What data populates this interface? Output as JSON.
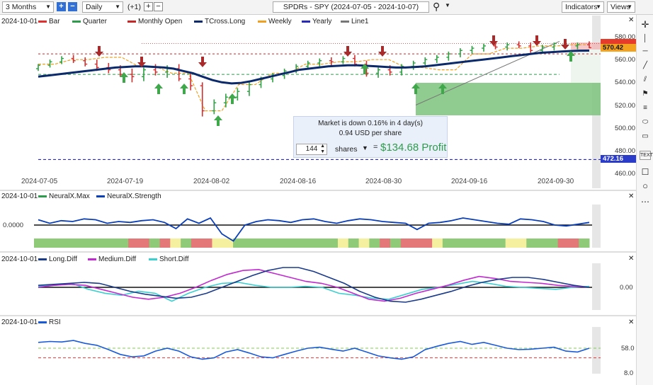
{
  "toolbar": {
    "range": "3 Months",
    "interval": "Daily",
    "plus_one": "(+1)",
    "title": "SPDRs - SPY (2024-07-05 - 2024-10-07)",
    "indicators": "Indicators",
    "views": "Views"
  },
  "price_panel": {
    "date": "2024-10-01",
    "legend": [
      {
        "label": "Bar",
        "color": "#e03030"
      },
      {
        "label": "Quarter",
        "color": "#2e9b4d"
      },
      {
        "label": "Monthly Open",
        "color": "#c62828"
      },
      {
        "label": "TCross.Long",
        "color": "#0b2a6b"
      },
      {
        "label": "Weekly",
        "color": "#f0a020"
      },
      {
        "label": "Yearly",
        "color": "#2a2ab8"
      },
      {
        "label": "Line1",
        "color": "#777777"
      }
    ],
    "y_ticks": [
      "580.00",
      "560.00",
      "540.00",
      "520.00",
      "500.00",
      "480.00",
      "460.00"
    ],
    "price_label": "570.42",
    "yearly_label": "472.16",
    "x_ticks": [
      "2024-07-05",
      "2024-07-19",
      "2024-08-02",
      "2024-08-16",
      "2024-08-30",
      "2024-09-16",
      "2024-09-30"
    ]
  },
  "callout": {
    "line1": "Market is down 0.16% in 4 day(s)",
    "line2": "0.94 USD per share",
    "quantity": "144",
    "shares": "shares",
    "equals": "=",
    "profit": "$134.68 Profit"
  },
  "neural_panel": {
    "date": "2024-10-01",
    "legend": [
      {
        "label": "NeuralX.Max",
        "color": "#2e9b4d"
      },
      {
        "label": "NeuralX.Strength",
        "color": "#0b3fb8"
      }
    ],
    "y_label": "0.0000"
  },
  "diff_panel": {
    "date": "2024-10-01",
    "legend": [
      {
        "label": "Long.Diff",
        "color": "#1a3a8a"
      },
      {
        "label": "Medium.Diff",
        "color": "#c02ad0"
      },
      {
        "label": "Short.Diff",
        "color": "#3ccfd0"
      }
    ],
    "y_label": "0.00"
  },
  "rsi_panel": {
    "date": "2024-10-01",
    "legend": [
      {
        "label": "RSI",
        "color": "#1a5ad8"
      }
    ],
    "y_ticks": [
      "58.0",
      "8.0"
    ]
  },
  "right_toolbar": {
    "icons": [
      "crosshair-icon",
      "vertical-line-icon",
      "horizontal-line-icon",
      "trend-line-icon",
      "channel-icon",
      "flag-icon",
      "fibonacci-icon",
      "ellipse-icon",
      "rectangle-icon",
      "text-icon",
      "square-icon",
      "circle-icon",
      "more-icon"
    ],
    "text_label": "TEXT"
  },
  "chart_data": {
    "type": "bar",
    "symbol": "SPY",
    "date_range": [
      "2024-07-05",
      "2024-10-07"
    ],
    "price_ylim": [
      460,
      585
    ],
    "last_price": 570.42,
    "yearly_level": 472.16,
    "quarter_level": 547.0,
    "monthly_open_level": 565.0,
    "tcross_long": [
      545,
      546,
      547,
      548,
      549,
      550,
      551,
      552,
      553,
      553.5,
      554,
      554,
      553.5,
      553,
      552,
      550,
      548,
      545,
      542,
      540,
      539,
      539.5,
      541,
      543,
      545,
      547,
      549,
      551,
      552,
      553,
      554,
      554.5,
      555,
      555,
      554.5,
      554,
      553.5,
      553,
      553,
      553.5,
      554,
      555,
      556,
      557,
      558,
      559,
      560,
      561,
      562,
      563,
      564,
      565,
      566,
      566.5,
      567,
      567.5,
      567.8,
      567.9
    ],
    "bars": [
      [
        552,
        556,
        550,
        555
      ],
      [
        555,
        560,
        553,
        558
      ],
      [
        558,
        563,
        556,
        561
      ],
      [
        561,
        564,
        557,
        559
      ],
      [
        559,
        562,
        554,
        556
      ],
      [
        556,
        560,
        550,
        553
      ],
      [
        553,
        557,
        548,
        551
      ],
      [
        551,
        555,
        545,
        547
      ],
      [
        547,
        552,
        540,
        545
      ],
      [
        545,
        553,
        541,
        551
      ],
      [
        551,
        556,
        546,
        549
      ],
      [
        549,
        555,
        544,
        552
      ],
      [
        552,
        556,
        541,
        543
      ],
      [
        543,
        548,
        533,
        537
      ],
      [
        537,
        540,
        510,
        515
      ],
      [
        515,
        525,
        512,
        522
      ],
      [
        522,
        530,
        518,
        527
      ],
      [
        527,
        535,
        524,
        532
      ],
      [
        532,
        540,
        528,
        538
      ],
      [
        538,
        545,
        535,
        543
      ],
      [
        543,
        548,
        540,
        546
      ],
      [
        546,
        552,
        543,
        550
      ],
      [
        550,
        556,
        548,
        554
      ],
      [
        554,
        559,
        552,
        557
      ],
      [
        557,
        561,
        554,
        559
      ],
      [
        559,
        562,
        555,
        558
      ],
      [
        558,
        563,
        556,
        561
      ],
      [
        561,
        564,
        554,
        556
      ],
      [
        556,
        559,
        545,
        548
      ],
      [
        548,
        553,
        544,
        551
      ],
      [
        551,
        555,
        546,
        549
      ],
      [
        549,
        556,
        546,
        554
      ],
      [
        554,
        559,
        551,
        557
      ],
      [
        557,
        562,
        555,
        560
      ],
      [
        560,
        564,
        557,
        562
      ],
      [
        562,
        567,
        559,
        565
      ],
      [
        565,
        570,
        562,
        568
      ],
      [
        568,
        572,
        565,
        570
      ],
      [
        570,
        574,
        567,
        572
      ],
      [
        572,
        575,
        569,
        571
      ],
      [
        571,
        575,
        568,
        573
      ],
      [
        573,
        576,
        570,
        572
      ],
      [
        572,
        575,
        566,
        568
      ],
      [
        568,
        573,
        565,
        571
      ],
      [
        571,
        575,
        568,
        574
      ],
      [
        574,
        577,
        570,
        572
      ],
      [
        572,
        575,
        569,
        573
      ],
      [
        573,
        576,
        570,
        570.42
      ]
    ],
    "neural_strength": [
      0.3,
      0.1,
      0.25,
      0.2,
      0.35,
      0.3,
      0.1,
      0.2,
      0.15,
      0.25,
      0.3,
      0.15,
      -0.2,
      0.35,
      0.1,
      0.4,
      -0.5,
      -0.9,
      0.0,
      0.2,
      0.3,
      0.25,
      0.15,
      0.3,
      0.35,
      0.2,
      0.1,
      0.25,
      0.35,
      0.3,
      0.2,
      0.15,
      0.1,
      -0.25,
      0.1,
      0.15,
      0.25,
      0.4,
      0.3,
      0.2,
      0.1,
      0.05,
      0.35,
      0.3,
      0.2,
      0.0,
      -0.05,
      0.05,
      0.15
    ],
    "neural_max_states": [
      "green",
      "green",
      "green",
      "green",
      "green",
      "green",
      "green",
      "green",
      "green",
      "red",
      "red",
      "green",
      "red",
      "yellow",
      "green",
      "red",
      "red",
      "yellow",
      "yellow",
      "green",
      "green",
      "green",
      "green",
      "green",
      "green",
      "green",
      "green",
      "green",
      "green",
      "yellow",
      "green",
      "yellow",
      "green",
      "red",
      "green",
      "red",
      "red",
      "red",
      "yellow",
      "green",
      "green",
      "green",
      "green",
      "green",
      "green",
      "yellow",
      "yellow",
      "green",
      "green",
      "green",
      "red",
      "red",
      "green"
    ],
    "long_diff": [
      0.1,
      0.15,
      0.2,
      0.25,
      0.2,
      0.0,
      -0.2,
      -0.35,
      -0.45,
      -0.55,
      -0.5,
      -0.3,
      0.0,
      0.3,
      0.6,
      0.85,
      1.0,
      1.0,
      0.8,
      0.5,
      0.2,
      -0.2,
      -0.5,
      -0.7,
      -0.75,
      -0.6,
      -0.4,
      -0.2,
      0.05,
      0.25,
      0.4,
      0.5,
      0.5,
      0.4,
      0.25,
      0.1,
      0.0
    ],
    "medium_diff": [
      0.0,
      0.1,
      0.15,
      0.1,
      -0.1,
      -0.3,
      -0.5,
      -0.6,
      -0.5,
      -0.3,
      0.0,
      0.35,
      0.65,
      0.85,
      0.9,
      0.7,
      0.5,
      0.3,
      0.2,
      0.0,
      -0.3,
      -0.6,
      -0.7,
      -0.55,
      -0.3,
      -0.1,
      0.1,
      0.35,
      0.55,
      0.45,
      0.3,
      0.25,
      0.2,
      0.1,
      0.05,
      0.0
    ],
    "short_diff": [
      0.05,
      0.1,
      0.2,
      -0.1,
      -0.3,
      -0.4,
      -0.2,
      -0.3,
      -0.7,
      -0.3,
      0.0,
      0.2,
      0.25,
      0.1,
      0.0,
      0.0,
      0.05,
      0.0,
      -0.3,
      -0.4,
      -0.55,
      -0.6,
      -0.35,
      -0.1,
      0.0,
      0.15,
      0.3,
      0.2,
      0.05,
      0.0,
      -0.05,
      -0.1,
      0.0,
      0.05
    ],
    "rsi": [
      70,
      72,
      71,
      74,
      68,
      64,
      55,
      45,
      40,
      42,
      52,
      58,
      52,
      40,
      35,
      38,
      50,
      55,
      48,
      40,
      38,
      45,
      52,
      58,
      60,
      56,
      52,
      58,
      50,
      42,
      38,
      35,
      40,
      55,
      62,
      68,
      72,
      66,
      70,
      64,
      58,
      55,
      56,
      58,
      60,
      52,
      50,
      58
    ],
    "rsi_levels": [
      58,
      38
    ]
  }
}
